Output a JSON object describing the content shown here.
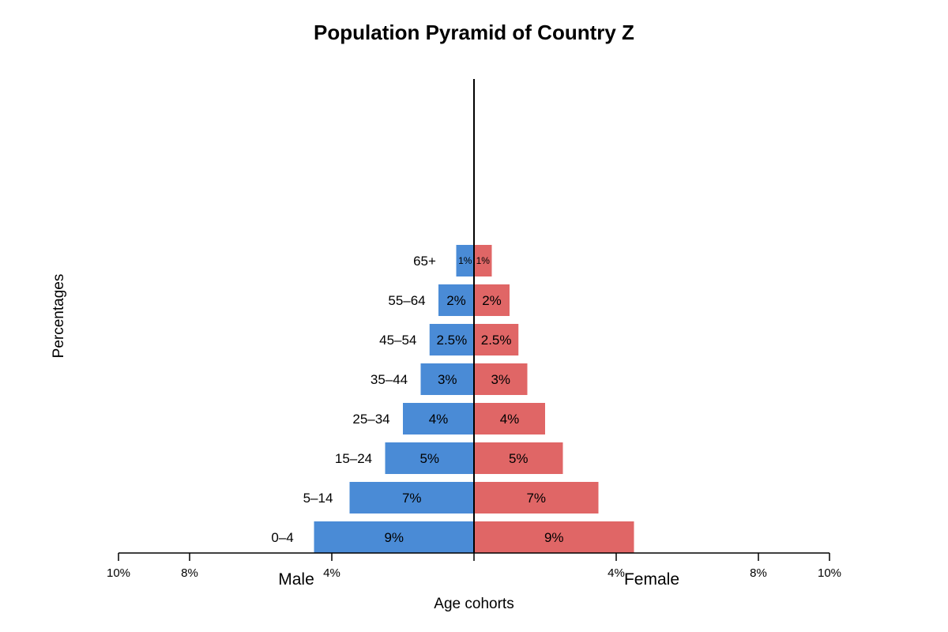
{
  "chart_data": {
    "type": "bar",
    "orientation": "horizontal",
    "title": "Population Pyramid of Country Z",
    "xlabel": "Age cohorts",
    "ylabel": "Percentages",
    "left_side_label": "Male",
    "right_side_label": "Female",
    "categories": [
      "0–4",
      "5–14",
      "15–24",
      "25–34",
      "35–44",
      "45–54",
      "55–64",
      "65+"
    ],
    "series": [
      {
        "name": "Male",
        "values": [
          9,
          7,
          5,
          4,
          3,
          2.5,
          2,
          1
        ],
        "labels": [
          "9%",
          "7%",
          "5%",
          "4%",
          "3%",
          "2.5%",
          "2%",
          "1%"
        ]
      },
      {
        "name": "Female",
        "values": [
          9,
          7,
          5,
          4,
          3,
          2.5,
          2,
          1
        ],
        "labels": [
          "9%",
          "7%",
          "5%",
          "4%",
          "3%",
          "2.5%",
          "2%",
          "1%"
        ]
      }
    ],
    "x_ticks": [
      {
        "value": -10,
        "label": "10%"
      },
      {
        "value": -8,
        "label": "8%"
      },
      {
        "value": -4,
        "label": "4%"
      },
      {
        "value": 0,
        "label": ""
      },
      {
        "value": 4,
        "label": "4%"
      },
      {
        "value": 8,
        "label": "8%"
      },
      {
        "value": 10,
        "label": "10%"
      }
    ],
    "xlim": [
      -10,
      10
    ],
    "colors": {
      "male": "#4a8bd6",
      "female": "#e06666"
    },
    "grid": false,
    "legend": "none"
  }
}
